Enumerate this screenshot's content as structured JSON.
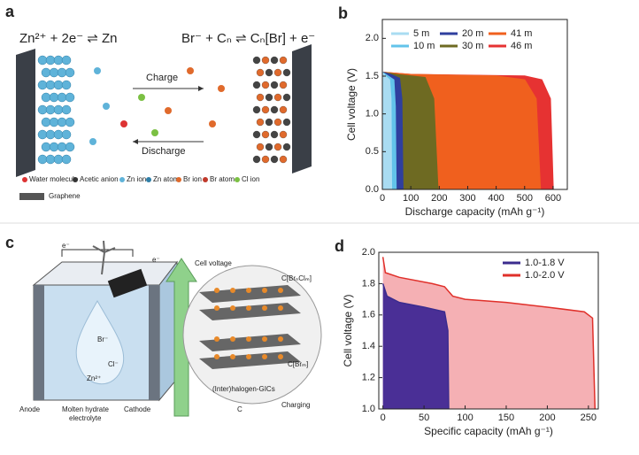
{
  "panel_a": {
    "label": "a",
    "equation_left": "Zn²⁺ + 2e⁻ ⇌ Zn",
    "equation_right": "Br⁻ + Cₙ ⇌ Cₙ[Br] + e⁻",
    "charge": "Charge",
    "discharge": "Discharge",
    "legend": [
      "Water molecule",
      "Acetic anion",
      "Zn ion",
      "Zn atom",
      "Br ion",
      "Br atom",
      "Cl ion",
      "Graphene"
    ]
  },
  "panel_c": {
    "label": "c",
    "electron_left": "e⁻",
    "electron_right": "e⁻",
    "cell_voltage": "Cell voltage",
    "br_ion": "Br⁻",
    "cl_ion": "Cl⁻",
    "zn_ion": "Zn²⁺",
    "gic_top": "C[BrₙClₘ]",
    "gic_bottom": "C[Brₘ]",
    "gics": "(Inter)halogen-GICs",
    "carbon": "C",
    "charging": "Charging",
    "anode": "Anode",
    "electrolyte": [
      "Molten hydrate",
      "electrolyte"
    ],
    "cathode": "Cathode"
  },
  "chart_data": [
    {
      "type": "area",
      "panel_label": "b",
      "x_label": "Discharge capacity (mAh g⁻¹)",
      "y_label": "Cell voltage (V)",
      "xlim": [
        0,
        650
      ],
      "ylim": [
        0,
        2.25
      ],
      "xticks": [
        0,
        100,
        200,
        300,
        400,
        500,
        600
      ],
      "yticks": [
        {
          "value": 0,
          "label": "0.0"
        },
        0.5,
        {
          "value": 1,
          "label": "1.0"
        },
        1.5,
        {
          "value": 2,
          "label": "2.0"
        }
      ],
      "legend": "upper left",
      "series": [
        {
          "name": "5 m",
          "color": "#a9dcf2",
          "x": [
            0,
            10,
            25,
            30,
            32
          ],
          "values": [
            1.55,
            1.5,
            1.45,
            1.2,
            0
          ]
        },
        {
          "name": "10 m",
          "color": "#62c3ea",
          "x": [
            0,
            20,
            40,
            45,
            48
          ],
          "values": [
            1.55,
            1.5,
            1.45,
            1.1,
            0
          ]
        },
        {
          "name": "20 m",
          "color": "#2f3f9e",
          "x": [
            0,
            30,
            60,
            68,
            72
          ],
          "values": [
            1.55,
            1.52,
            1.47,
            1.2,
            0
          ]
        },
        {
          "name": "30 m",
          "color": "#6e6a22",
          "x": [
            0,
            50,
            150,
            180,
            195
          ],
          "values": [
            1.55,
            1.52,
            1.48,
            1.2,
            0
          ]
        },
        {
          "name": "41 m",
          "color": "#f0601e",
          "x": [
            0,
            100,
            400,
            500,
            540,
            555
          ],
          "values": [
            1.55,
            1.52,
            1.5,
            1.45,
            1.2,
            0
          ]
        },
        {
          "name": "46 m",
          "color": "#e63232",
          "x": [
            0,
            100,
            500,
            560,
            590,
            600
          ],
          "values": [
            1.55,
            1.52,
            1.5,
            1.45,
            1.2,
            0
          ]
        }
      ]
    },
    {
      "type": "area",
      "panel_label": "d",
      "x_label": "Specific capacity (mAh g⁻¹)",
      "y_label": "Cell voltage (V)",
      "xlim": [
        -5,
        262
      ],
      "ylim": [
        1,
        2
      ],
      "xticks": [
        0,
        50,
        100,
        150,
        200,
        250
      ],
      "yticks": [
        {
          "value": 1,
          "label": "1.0"
        },
        1.2,
        1.4,
        1.6,
        1.8,
        {
          "value": 2,
          "label": "2.0"
        }
      ],
      "legend": "upper right",
      "series": [
        {
          "name": "1.0-1.8 V",
          "color": "#3b2c8e",
          "fill": "#4a2f96",
          "x": [
            0,
            5,
            20,
            50,
            75,
            79,
            80
          ],
          "values": [
            1.8,
            1.72,
            1.68,
            1.65,
            1.62,
            1.5,
            1
          ]
        },
        {
          "name": "1.0-2.0 V",
          "color": "#e0302a",
          "fill": "#f5b0b4",
          "x": [
            0,
            3,
            20,
            60,
            75,
            85,
            100,
            150,
            200,
            245,
            255,
            258
          ],
          "values": [
            1.97,
            1.87,
            1.84,
            1.8,
            1.78,
            1.72,
            1.7,
            1.68,
            1.65,
            1.62,
            1.58,
            1
          ]
        }
      ]
    }
  ]
}
